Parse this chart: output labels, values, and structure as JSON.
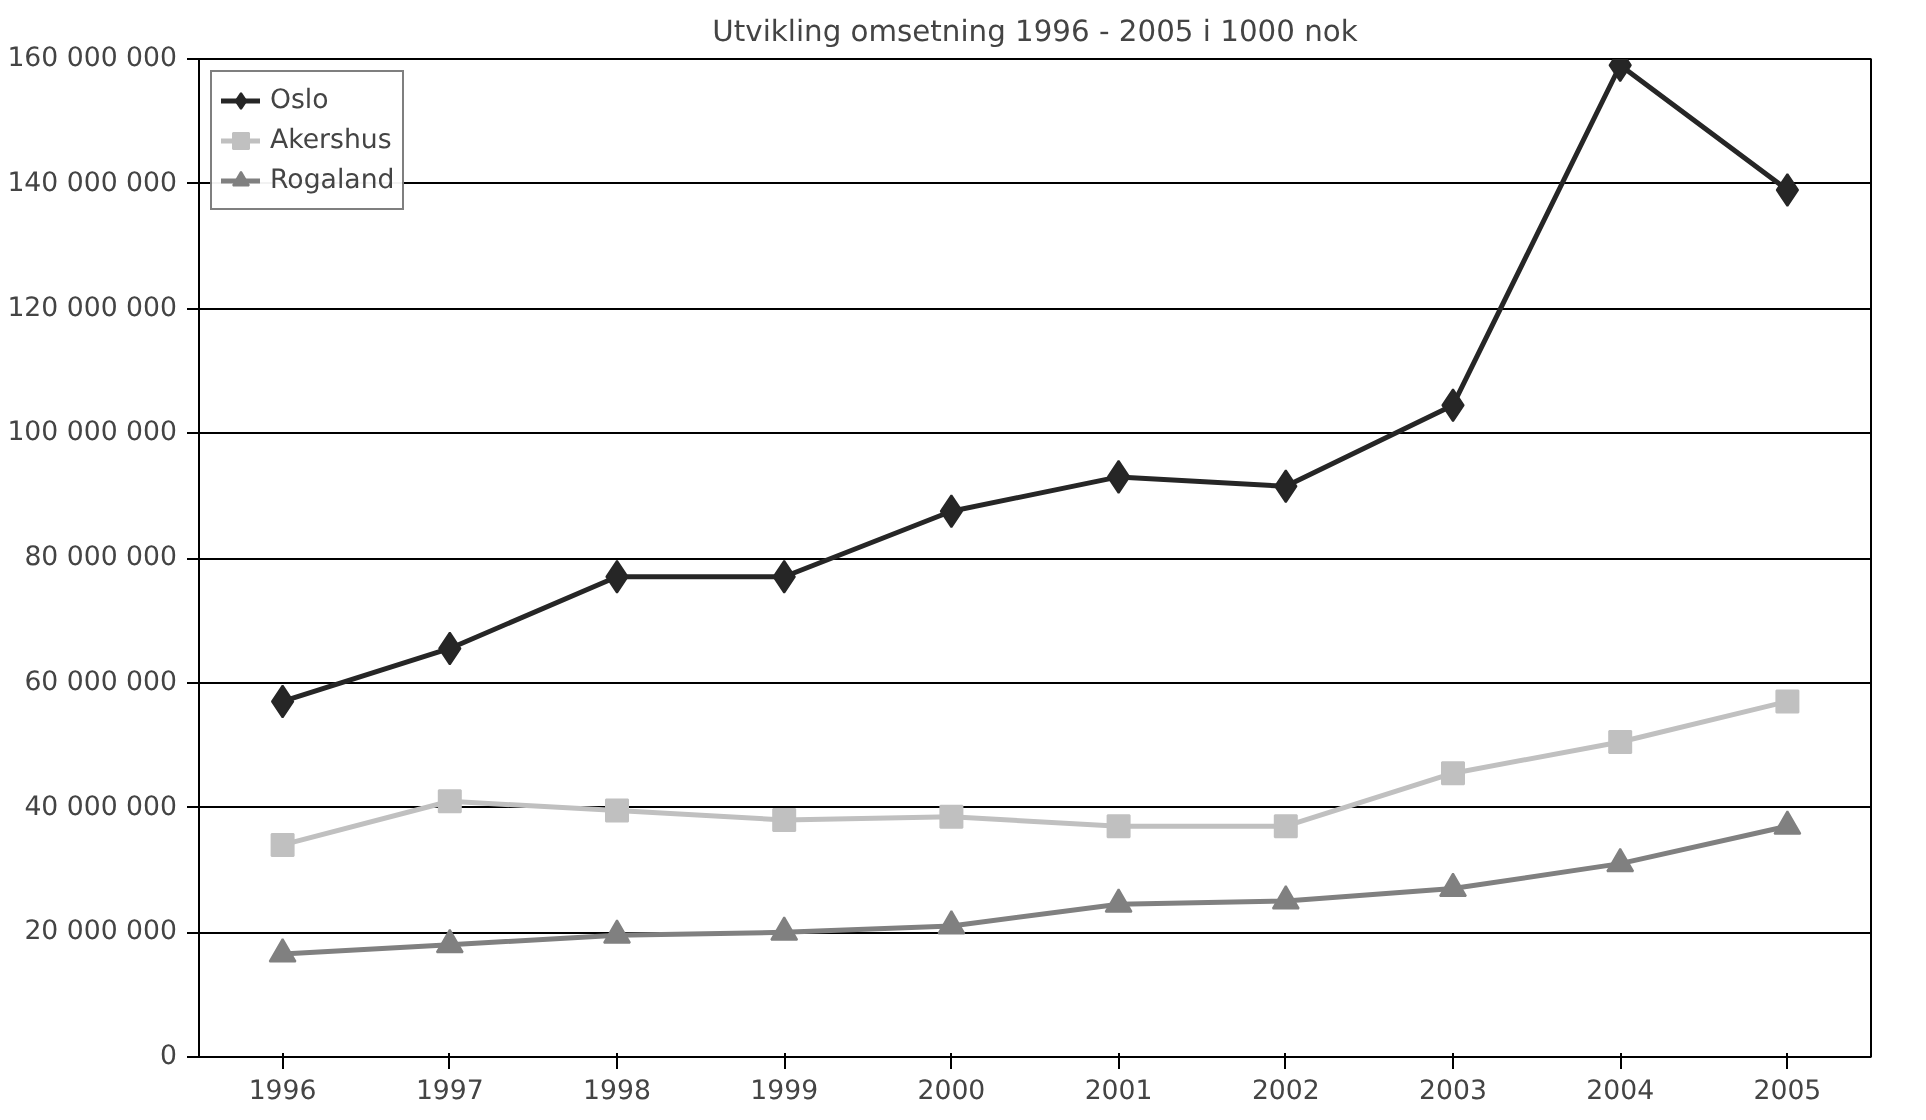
{
  "chart_data": {
    "type": "line",
    "title": "Utvikling omsetning 1996 - 2005 i 1000 nok",
    "categories": [
      "1996",
      "1997",
      "1998",
      "1999",
      "2000",
      "2001",
      "2002",
      "2003",
      "2004",
      "2005"
    ],
    "series": [
      {
        "name": "Oslo",
        "color": "#262626",
        "marker": "diamond",
        "values": [
          57000000,
          65500000,
          77000000,
          77000000,
          87500000,
          93000000,
          91500000,
          104500000,
          159000000,
          139000000
        ]
      },
      {
        "name": "Akershus",
        "color": "#c0c0c0",
        "marker": "square",
        "values": [
          34000000,
          41000000,
          39500000,
          38000000,
          38500000,
          37000000,
          37000000,
          45500000,
          50500000,
          57000000
        ]
      },
      {
        "name": "Rogaland",
        "color": "#808080",
        "marker": "triangle",
        "values": [
          16500000,
          18000000,
          19500000,
          20000000,
          21000000,
          24500000,
          25000000,
          27000000,
          31000000,
          37000000
        ]
      }
    ],
    "ylim": [
      0,
      160000000
    ],
    "yticks": [
      {
        "value": 0,
        "label": "0"
      },
      {
        "value": 20000000,
        "label": "20 000 000"
      },
      {
        "value": 40000000,
        "label": "40 000 000"
      },
      {
        "value": 60000000,
        "label": "60 000 000"
      },
      {
        "value": 80000000,
        "label": "80 000 000"
      },
      {
        "value": 100000000,
        "label": "100 000 000"
      },
      {
        "value": 120000000,
        "label": "120 000 000"
      },
      {
        "value": 140000000,
        "label": "140 000 000"
      },
      {
        "value": 160000000,
        "label": "160 000 000"
      }
    ],
    "grid": "y",
    "legend": "top left",
    "line_style": "solid"
  }
}
